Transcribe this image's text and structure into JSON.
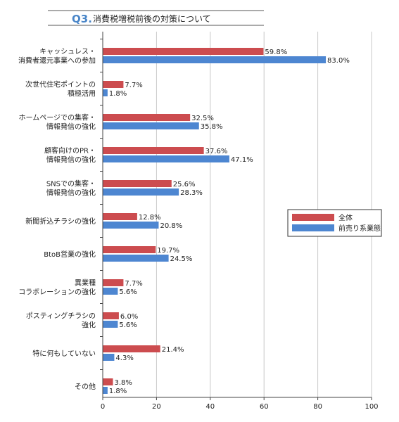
{
  "title": {
    "label": "Q3.",
    "text": "消費税増税前後の対策について"
  },
  "colors": {
    "series_1": "#cc4c4f",
    "series_2": "#4d86d1",
    "title_label": "#4a86c8",
    "axis": "#444444",
    "gridline": "#c8c8c8"
  },
  "chart_data": {
    "type": "bar",
    "orientation": "horizontal",
    "title": "Q3.消費税増税前後の対策について",
    "xlabel": "",
    "ylabel": "",
    "xlim": [
      0,
      100
    ],
    "x_ticks": [
      "0",
      "20",
      "40",
      "60",
      "80",
      "100"
    ],
    "value_format": "%",
    "legend_position": "right",
    "categories": [
      [
        "キャッシュレス・",
        "消費者還元事業への参加"
      ],
      [
        "次世代住宅ポイントの",
        "積極活用"
      ],
      [
        "ホームページでの集客・",
        "情報発信の強化"
      ],
      [
        "顧客向けのPR・",
        "情報発信の強化"
      ],
      [
        "SNSでの集客・",
        "情報発信の強化"
      ],
      [
        "新聞折込チラシの強化"
      ],
      [
        "BtoB営業の強化"
      ],
      [
        "異業種",
        "コラボレーションの強化"
      ],
      [
        "ポスティングチラシの",
        "強化"
      ],
      [
        "特に何もしていない"
      ],
      [
        "その他"
      ]
    ],
    "series": [
      {
        "name": "全体",
        "values": [
          59.8,
          7.7,
          32.5,
          37.6,
          25.6,
          12.8,
          19.7,
          7.7,
          6.0,
          21.4,
          3.8
        ],
        "labels": [
          "59.8%",
          "7.7%",
          "32.5%",
          "37.6%",
          "25.6%",
          "12.8%",
          "19.7%",
          "7.7%",
          "6.0%",
          "21.4%",
          "3.8%"
        ]
      },
      {
        "name": "前売り系業態",
        "values": [
          83.0,
          1.8,
          35.8,
          47.1,
          28.3,
          20.8,
          24.5,
          5.6,
          5.6,
          4.3,
          1.8
        ],
        "labels": [
          "83.0%",
          "1.8%",
          "35.8%",
          "47.1%",
          "28.3%",
          "20.8%",
          "24.5%",
          "5.6%",
          "5.6%",
          "4.3%",
          "1.8%"
        ]
      }
    ]
  }
}
